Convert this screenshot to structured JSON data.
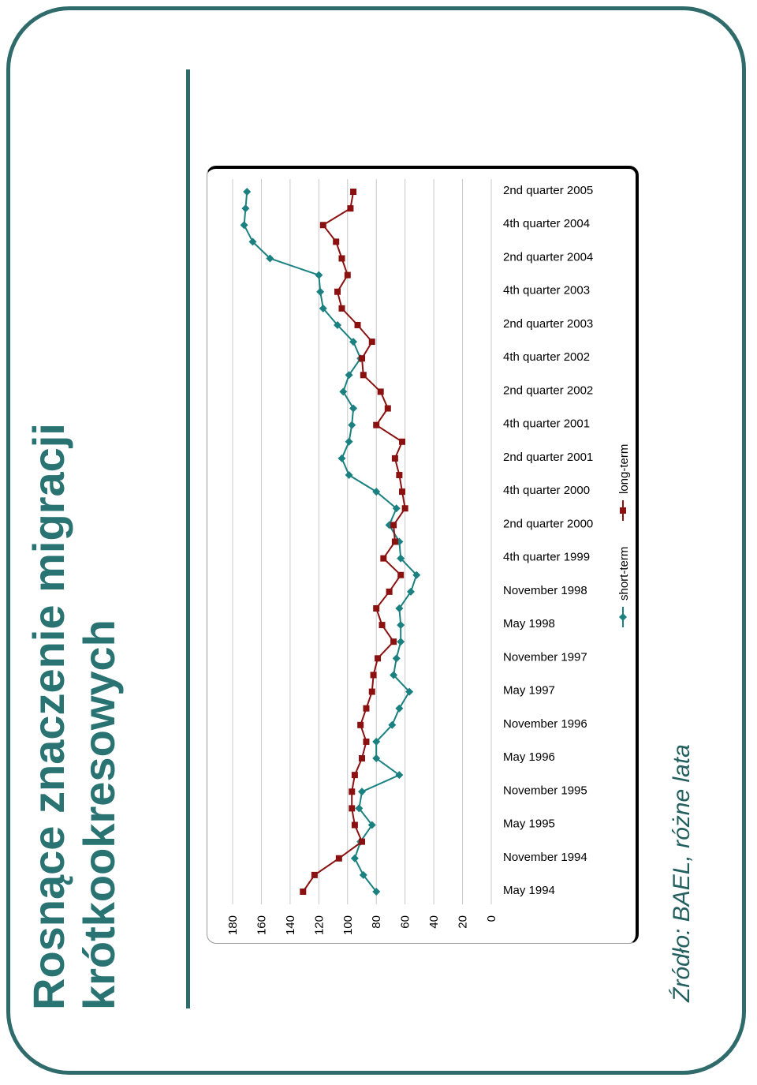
{
  "slide": {
    "title_line1": "Rosnące znaczenie migracji",
    "title_line2": "krótkookresowych",
    "source": "Źródło: BAEL, różne lata"
  },
  "chart_data": {
    "type": "line",
    "orientation": "rotated-90",
    "x_tick_labels": [
      "2nd quarter 2005",
      "4th quarter 2004",
      "2nd quarter 2004",
      "4th quarter 2003",
      "2nd quarter 2003",
      "4th quarter 2002",
      "2nd quarter 2002",
      "4th quarter 2001",
      "2nd quarter 2001",
      "4th quarter 2000",
      "2nd quarter 2000",
      "4th quarter 1999",
      "November 1998",
      "May 1998",
      "November 1997",
      "May 1997",
      "November 1996",
      "May 1996",
      "November 1995",
      "May 1995",
      "November 1994",
      "May 1994"
    ],
    "y_ticks": [
      0,
      20,
      40,
      60,
      80,
      100,
      120,
      140,
      160,
      180
    ],
    "ylim": [
      0,
      180
    ],
    "grid": true,
    "legend_position": "right",
    "series": [
      {
        "name": "short-term",
        "color": "#1a8080",
        "marker": "diamond",
        "values": [
          80,
          89,
          95,
          91,
          83,
          92,
          90,
          64,
          80,
          80,
          69,
          64,
          57,
          68,
          66,
          63,
          63,
          64,
          56,
          52,
          63,
          64,
          71,
          66,
          80,
          99,
          104,
          99,
          97,
          96,
          103,
          99,
          91,
          96,
          107,
          117,
          119,
          120,
          154,
          166,
          172,
          171,
          170
        ]
      },
      {
        "name": "long-term",
        "color": "#8b1111",
        "marker": "square",
        "values": [
          131,
          123,
          106,
          90,
          95,
          97,
          97,
          95,
          90,
          87,
          91,
          87,
          83,
          82,
          79,
          68,
          76,
          80,
          71,
          63,
          75,
          67,
          68,
          60,
          62,
          64,
          67,
          62,
          80,
          72,
          77,
          89,
          90,
          83,
          93,
          104,
          107,
          100,
          104,
          108,
          117,
          98,
          96
        ]
      }
    ]
  }
}
